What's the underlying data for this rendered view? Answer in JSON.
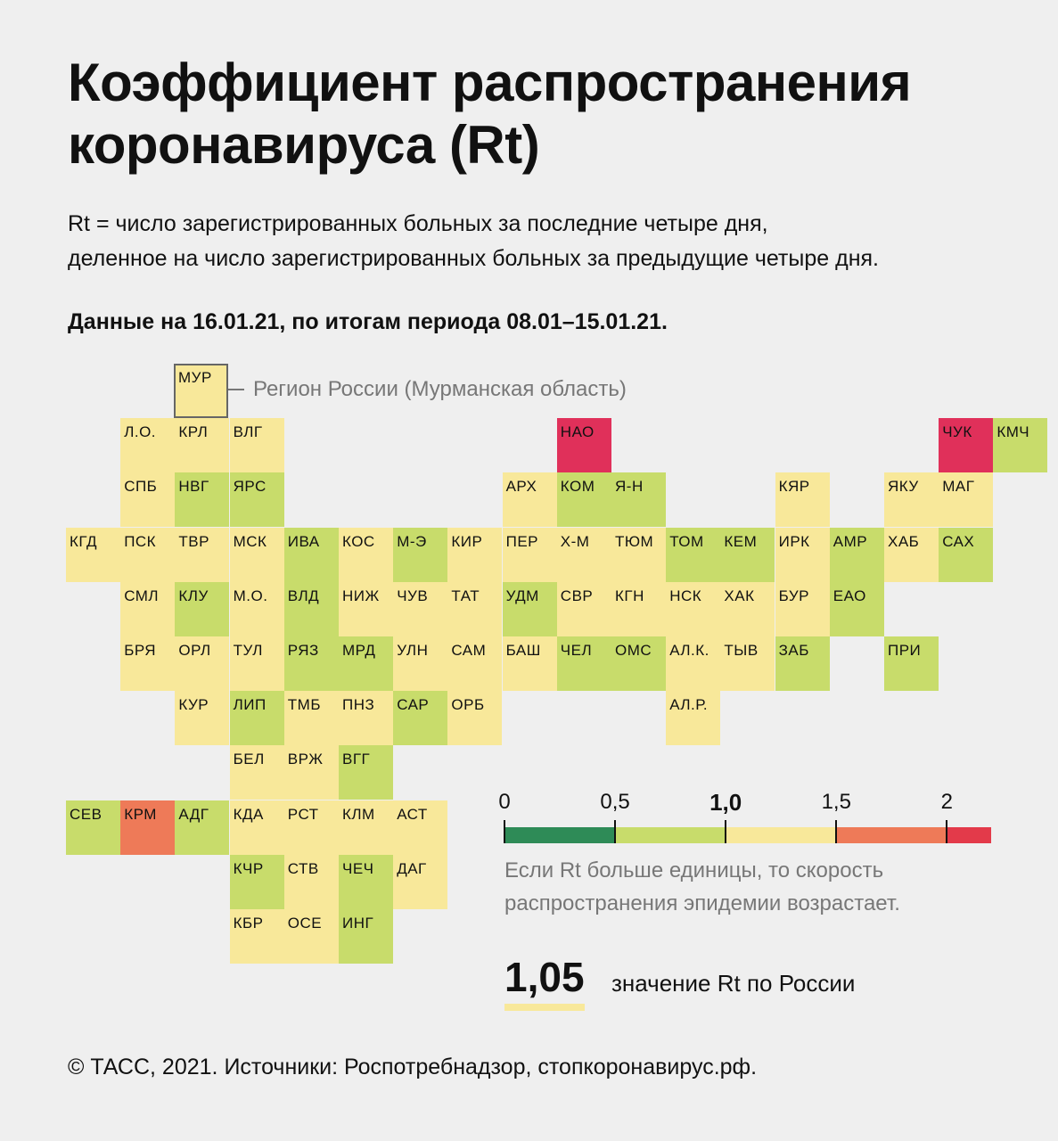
{
  "title_lines": [
    "Коэффициент распространения",
    "коронавируса (Rt)"
  ],
  "subtitle_lines": [
    "Rt = число зарегистрированных больных за последние четыре дня,",
    "деленное на число зарегистрированных больных за предыдущие четыре дня."
  ],
  "date_line": "Данные на 16.01.21, по итогам периода 08.01–15.01.21.",
  "example": {
    "code": "МУР",
    "label": "Регион России (Мурманская область)"
  },
  "colors": {
    "background": "#efefef",
    "bin_0_05": "#2e8b57",
    "bin_05_10": "#c8dc6b",
    "bin_10_15": "#f8e89a",
    "bin_15_20": "#ee7a58",
    "bin_20_plus": "#e33a4a",
    "highlight_tile": "#e0305a"
  },
  "chart_data": {
    "type": "heatmap",
    "title": "Коэффициент распространения коронавируса (Rt)",
    "value_note": "Tile color encodes Rt bin; exact per-region values are not printed.",
    "bins": [
      {
        "range": [
          0,
          0.5
        ],
        "color": "#2e8b57"
      },
      {
        "range": [
          0.5,
          1.0
        ],
        "color": "#c8dc6b"
      },
      {
        "range": [
          1.0,
          1.5
        ],
        "color": "#f8e89a"
      },
      {
        "range": [
          1.5,
          2.0
        ],
        "color": "#ee7a58"
      },
      {
        "range": [
          2.0,
          2.2
        ],
        "color": "#e33a4a"
      }
    ],
    "regions": [
      {
        "code": "МУР",
        "row": 0,
        "col": 2,
        "bin": "1.0-1.5"
      },
      {
        "code": "Л.О.",
        "row": 1,
        "col": 1,
        "bin": "1.0-1.5"
      },
      {
        "code": "КРЛ",
        "row": 1,
        "col": 2,
        "bin": "1.0-1.5"
      },
      {
        "code": "ВЛГ",
        "row": 1,
        "col": 3,
        "bin": "1.0-1.5"
      },
      {
        "code": "НАО",
        "row": 1,
        "col": 9,
        "bin": "2.0+"
      },
      {
        "code": "ЧУК",
        "row": 1,
        "col": 16,
        "bin": "2.0+"
      },
      {
        "code": "КМЧ",
        "row": 1,
        "col": 17,
        "bin": "0.5-1.0"
      },
      {
        "code": "СПБ",
        "row": 2,
        "col": 1,
        "bin": "1.0-1.5"
      },
      {
        "code": "НВГ",
        "row": 2,
        "col": 2,
        "bin": "0.5-1.0"
      },
      {
        "code": "ЯРС",
        "row": 2,
        "col": 3,
        "bin": "0.5-1.0"
      },
      {
        "code": "АРХ",
        "row": 2,
        "col": 8,
        "bin": "1.0-1.5"
      },
      {
        "code": "КОМ",
        "row": 2,
        "col": 9,
        "bin": "0.5-1.0"
      },
      {
        "code": "Я-Н",
        "row": 2,
        "col": 10,
        "bin": "0.5-1.0"
      },
      {
        "code": "КЯР",
        "row": 2,
        "col": 13,
        "bin": "1.0-1.5"
      },
      {
        "code": "ЯКУ",
        "row": 2,
        "col": 15,
        "bin": "1.0-1.5"
      },
      {
        "code": "МАГ",
        "row": 2,
        "col": 16,
        "bin": "1.0-1.5"
      },
      {
        "code": "КГД",
        "row": 3,
        "col": 0,
        "bin": "1.0-1.5"
      },
      {
        "code": "ПСК",
        "row": 3,
        "col": 1,
        "bin": "1.0-1.5"
      },
      {
        "code": "ТВР",
        "row": 3,
        "col": 2,
        "bin": "1.0-1.5"
      },
      {
        "code": "МСК",
        "row": 3,
        "col": 3,
        "bin": "1.0-1.5"
      },
      {
        "code": "ИВА",
        "row": 3,
        "col": 4,
        "bin": "0.5-1.0"
      },
      {
        "code": "КОС",
        "row": 3,
        "col": 5,
        "bin": "1.0-1.5"
      },
      {
        "code": "М-Э",
        "row": 3,
        "col": 6,
        "bin": "0.5-1.0"
      },
      {
        "code": "КИР",
        "row": 3,
        "col": 7,
        "bin": "1.0-1.5"
      },
      {
        "code": "ПЕР",
        "row": 3,
        "col": 8,
        "bin": "1.0-1.5"
      },
      {
        "code": "Х-М",
        "row": 3,
        "col": 9,
        "bin": "1.0-1.5"
      },
      {
        "code": "ТЮМ",
        "row": 3,
        "col": 10,
        "bin": "1.0-1.5"
      },
      {
        "code": "ТОМ",
        "row": 3,
        "col": 11,
        "bin": "0.5-1.0"
      },
      {
        "code": "КЕМ",
        "row": 3,
        "col": 12,
        "bin": "0.5-1.0"
      },
      {
        "code": "ИРК",
        "row": 3,
        "col": 13,
        "bin": "1.0-1.5"
      },
      {
        "code": "АМР",
        "row": 3,
        "col": 14,
        "bin": "0.5-1.0"
      },
      {
        "code": "ХАБ",
        "row": 3,
        "col": 15,
        "bin": "1.0-1.5"
      },
      {
        "code": "САХ",
        "row": 3,
        "col": 16,
        "bin": "0.5-1.0"
      },
      {
        "code": "СМЛ",
        "row": 4,
        "col": 1,
        "bin": "1.0-1.5"
      },
      {
        "code": "КЛУ",
        "row": 4,
        "col": 2,
        "bin": "0.5-1.0"
      },
      {
        "code": "М.О.",
        "row": 4,
        "col": 3,
        "bin": "1.0-1.5"
      },
      {
        "code": "ВЛД",
        "row": 4,
        "col": 4,
        "bin": "0.5-1.0"
      },
      {
        "code": "НИЖ",
        "row": 4,
        "col": 5,
        "bin": "1.0-1.5"
      },
      {
        "code": "ЧУВ",
        "row": 4,
        "col": 6,
        "bin": "1.0-1.5"
      },
      {
        "code": "ТАТ",
        "row": 4,
        "col": 7,
        "bin": "1.0-1.5"
      },
      {
        "code": "УДМ",
        "row": 4,
        "col": 8,
        "bin": "0.5-1.0"
      },
      {
        "code": "СВР",
        "row": 4,
        "col": 9,
        "bin": "1.0-1.5"
      },
      {
        "code": "КГН",
        "row": 4,
        "col": 10,
        "bin": "1.0-1.5"
      },
      {
        "code": "НСК",
        "row": 4,
        "col": 11,
        "bin": "1.0-1.5"
      },
      {
        "code": "ХАК",
        "row": 4,
        "col": 12,
        "bin": "1.0-1.5"
      },
      {
        "code": "БУР",
        "row": 4,
        "col": 13,
        "bin": "1.0-1.5"
      },
      {
        "code": "ЕАО",
        "row": 4,
        "col": 14,
        "bin": "0.5-1.0"
      },
      {
        "code": "БРЯ",
        "row": 5,
        "col": 1,
        "bin": "1.0-1.5"
      },
      {
        "code": "ОРЛ",
        "row": 5,
        "col": 2,
        "bin": "1.0-1.5"
      },
      {
        "code": "ТУЛ",
        "row": 5,
        "col": 3,
        "bin": "1.0-1.5"
      },
      {
        "code": "РЯЗ",
        "row": 5,
        "col": 4,
        "bin": "0.5-1.0"
      },
      {
        "code": "МРД",
        "row": 5,
        "col": 5,
        "bin": "0.5-1.0"
      },
      {
        "code": "УЛН",
        "row": 5,
        "col": 6,
        "bin": "1.0-1.5"
      },
      {
        "code": "САМ",
        "row": 5,
        "col": 7,
        "bin": "1.0-1.5"
      },
      {
        "code": "БАШ",
        "row": 5,
        "col": 8,
        "bin": "1.0-1.5"
      },
      {
        "code": "ЧЕЛ",
        "row": 5,
        "col": 9,
        "bin": "0.5-1.0"
      },
      {
        "code": "ОМС",
        "row": 5,
        "col": 10,
        "bin": "0.5-1.0"
      },
      {
        "code": "АЛ.К.",
        "row": 5,
        "col": 11,
        "bin": "1.0-1.5"
      },
      {
        "code": "ТЫВ",
        "row": 5,
        "col": 12,
        "bin": "1.0-1.5"
      },
      {
        "code": "ЗАБ",
        "row": 5,
        "col": 13,
        "bin": "0.5-1.0"
      },
      {
        "code": "ПРИ",
        "row": 5,
        "col": 15,
        "bin": "0.5-1.0"
      },
      {
        "code": "КУР",
        "row": 6,
        "col": 2,
        "bin": "1.0-1.5"
      },
      {
        "code": "ЛИП",
        "row": 6,
        "col": 3,
        "bin": "0.5-1.0"
      },
      {
        "code": "ТМБ",
        "row": 6,
        "col": 4,
        "bin": "1.0-1.5"
      },
      {
        "code": "ПНЗ",
        "row": 6,
        "col": 5,
        "bin": "1.0-1.5"
      },
      {
        "code": "САР",
        "row": 6,
        "col": 6,
        "bin": "0.5-1.0"
      },
      {
        "code": "ОРБ",
        "row": 6,
        "col": 7,
        "bin": "1.0-1.5"
      },
      {
        "code": "АЛ.Р.",
        "row": 6,
        "col": 11,
        "bin": "1.0-1.5"
      },
      {
        "code": "БЕЛ",
        "row": 7,
        "col": 3,
        "bin": "1.0-1.5"
      },
      {
        "code": "ВРЖ",
        "row": 7,
        "col": 4,
        "bin": "1.0-1.5"
      },
      {
        "code": "ВГГ",
        "row": 7,
        "col": 5,
        "bin": "0.5-1.0"
      },
      {
        "code": "СЕВ",
        "row": 8,
        "col": 0,
        "bin": "0.5-1.0"
      },
      {
        "code": "КРМ",
        "row": 8,
        "col": 1,
        "bin": "1.5-2.0"
      },
      {
        "code": "АДГ",
        "row": 8,
        "col": 2,
        "bin": "0.5-1.0"
      },
      {
        "code": "КДА",
        "row": 8,
        "col": 3,
        "bin": "1.0-1.5"
      },
      {
        "code": "РСТ",
        "row": 8,
        "col": 4,
        "bin": "1.0-1.5"
      },
      {
        "code": "КЛМ",
        "row": 8,
        "col": 5,
        "bin": "1.0-1.5"
      },
      {
        "code": "АСТ",
        "row": 8,
        "col": 6,
        "bin": "1.0-1.5"
      },
      {
        "code": "КЧР",
        "row": 9,
        "col": 3,
        "bin": "0.5-1.0"
      },
      {
        "code": "СТВ",
        "row": 9,
        "col": 4,
        "bin": "1.0-1.5"
      },
      {
        "code": "ЧЕЧ",
        "row": 9,
        "col": 5,
        "bin": "0.5-1.0"
      },
      {
        "code": "ДАГ",
        "row": 9,
        "col": 6,
        "bin": "1.0-1.5"
      },
      {
        "code": "КБР",
        "row": 10,
        "col": 3,
        "bin": "1.0-1.5"
      },
      {
        "code": "ОСЕ",
        "row": 10,
        "col": 4,
        "bin": "1.0-1.5"
      },
      {
        "code": "ИНГ",
        "row": 10,
        "col": 5,
        "bin": "0.5-1.0"
      }
    ]
  },
  "legend": {
    "ticks": [
      "0",
      "0,5",
      "1,0",
      "1,5",
      "2"
    ],
    "tick_values": [
      0,
      0.5,
      1.0,
      1.5,
      2.0
    ],
    "scale_max": 2.2,
    "note_lines": [
      "Если Rt больше единицы, то скорость",
      "распространения эпидемии возрастает."
    ]
  },
  "russia": {
    "value": "1,05",
    "label": "значение Rt по России"
  },
  "footer": "© ТАСС, 2021. Источники: Роспотребнадзор, стопкоронавирус.рф."
}
